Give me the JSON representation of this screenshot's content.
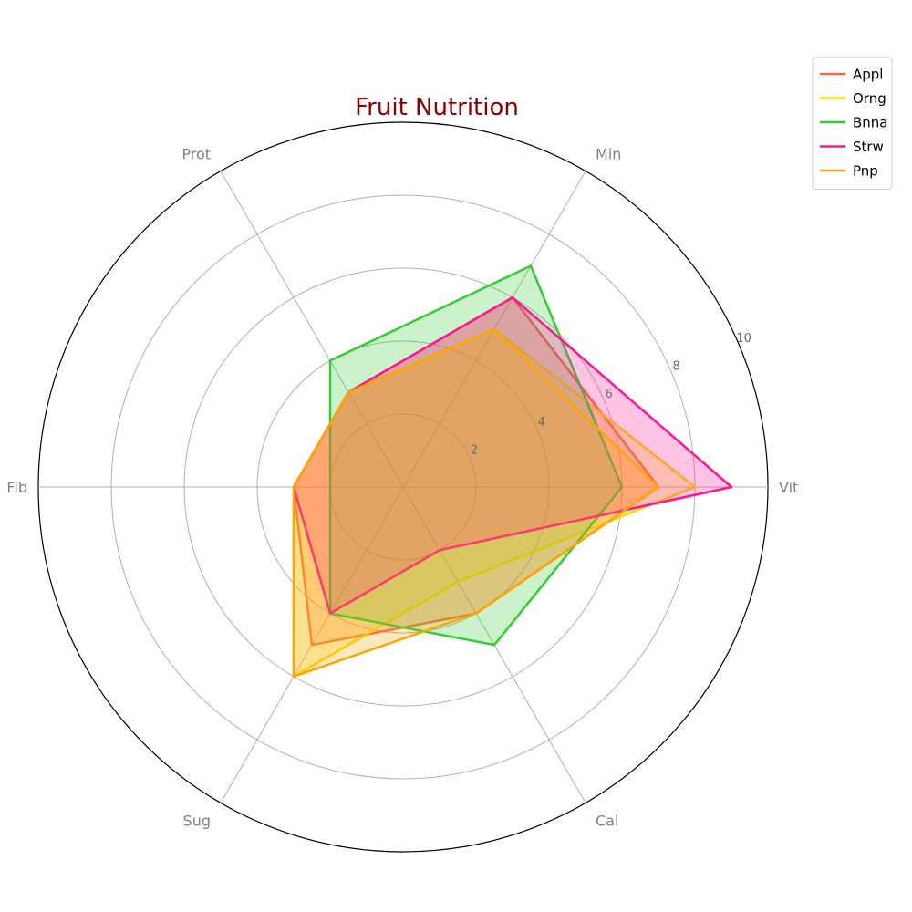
{
  "chart_data": {
    "type": "radar",
    "title": "Fruit Nutrition",
    "axes": [
      "Vit",
      "Min",
      "Prot",
      "Fib",
      "Sug",
      "Cal"
    ],
    "r_range": [
      0,
      10
    ],
    "r_ticks": [
      2,
      4,
      6,
      8,
      10
    ],
    "grid": true,
    "legend_position": "top-right",
    "series": [
      {
        "name": "Appl",
        "color": "#ff6347",
        "fill": "#ff6347",
        "values": [
          7,
          6,
          3,
          3,
          5,
          4
        ]
      },
      {
        "name": "Orng",
        "color": "#ffd700",
        "fill": "#ffd700",
        "values": [
          8,
          5,
          3,
          3,
          6,
          3
        ]
      },
      {
        "name": "Bnna",
        "color": "#32cd32",
        "fill": "#32cd32",
        "values": [
          6,
          7,
          4,
          2,
          4,
          5
        ]
      },
      {
        "name": "Strw",
        "color": "#ff1493",
        "fill": "#ff1493",
        "values": [
          9,
          6,
          3,
          3,
          4,
          2
        ]
      },
      {
        "name": "Pnp",
        "color": "#ffa500",
        "fill": "#ffa500",
        "values": [
          7,
          5,
          3,
          3,
          6,
          4
        ]
      }
    ]
  }
}
